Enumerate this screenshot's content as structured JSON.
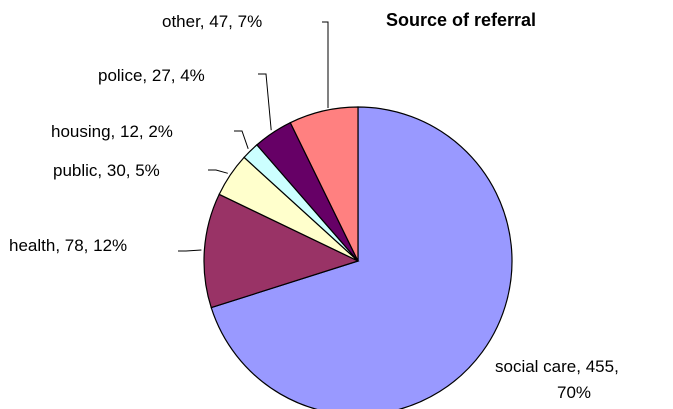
{
  "chart_data": {
    "type": "pie",
    "title": "Source of referral",
    "slices": [
      {
        "label": "social care",
        "value": 455,
        "percent": "70%",
        "color": "#9999ff"
      },
      {
        "label": "health",
        "value": 78,
        "percent": "12%",
        "color": "#993366"
      },
      {
        "label": "public",
        "value": 30,
        "percent": "5%",
        "color": "#ffffcc"
      },
      {
        "label": "housing",
        "value": 12,
        "percent": "2%",
        "color": "#ccffff"
      },
      {
        "label": "police",
        "value": 27,
        "percent": "4%",
        "color": "#660066"
      },
      {
        "label": "other",
        "value": 47,
        "percent": "7%",
        "color": "#ff8080"
      }
    ],
    "label_texts": [
      "social care, 455,",
      "70%",
      "health, 78, 12%",
      "public, 30, 5%",
      "housing, 12, 2%",
      "police, 27, 4%",
      "other, 47, 7%"
    ]
  }
}
